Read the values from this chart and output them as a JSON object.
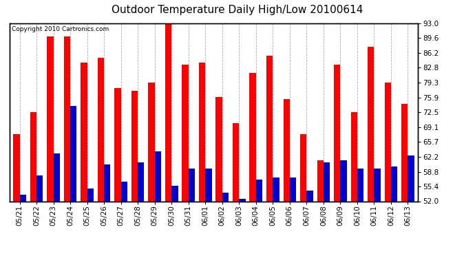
{
  "title": "Outdoor Temperature Daily High/Low 20100614",
  "copyright": "Copyright 2010 Cartronics.com",
  "dates": [
    "05/21",
    "05/22",
    "05/23",
    "05/24",
    "05/25",
    "05/26",
    "05/27",
    "05/28",
    "05/29",
    "05/30",
    "05/31",
    "06/01",
    "06/02",
    "06/03",
    "06/04",
    "06/05",
    "06/06",
    "06/07",
    "06/08",
    "06/09",
    "06/10",
    "06/11",
    "06/12",
    "06/13"
  ],
  "highs": [
    67.5,
    72.5,
    90.0,
    90.0,
    84.0,
    85.0,
    78.0,
    77.5,
    79.3,
    93.0,
    83.5,
    84.0,
    76.0,
    70.0,
    81.5,
    85.5,
    75.5,
    67.5,
    61.5,
    83.5,
    72.5,
    87.5,
    79.3,
    74.5
  ],
  "lows": [
    53.5,
    58.0,
    63.0,
    74.0,
    55.0,
    60.5,
    56.5,
    61.0,
    63.5,
    55.5,
    59.5,
    59.5,
    54.0,
    52.5,
    57.0,
    57.5,
    57.5,
    54.5,
    61.0,
    61.5,
    59.5,
    59.5,
    60.0,
    62.5
  ],
  "high_color": "#ff0000",
  "low_color": "#0000cc",
  "background_color": "#ffffff",
  "grid_color": "#aaaaaa",
  "ymin": 52.0,
  "ymax": 93.0,
  "yticks": [
    52.0,
    55.4,
    58.8,
    62.2,
    65.7,
    69.1,
    72.5,
    75.9,
    79.3,
    82.8,
    86.2,
    89.6,
    93.0
  ],
  "title_fontsize": 11,
  "tick_fontsize": 7.5,
  "copyright_fontsize": 6.5,
  "bar_width": 0.38
}
